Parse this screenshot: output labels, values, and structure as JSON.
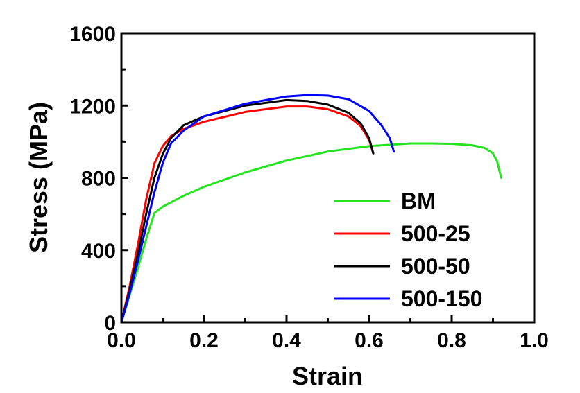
{
  "chart_data": {
    "type": "line",
    "xlabel": "Strain",
    "ylabel": "Stress (MPa)",
    "xlim": [
      0.0,
      1.0
    ],
    "ylim": [
      0,
      1600
    ],
    "xticks": [
      0.0,
      0.2,
      0.4,
      0.6,
      0.8,
      1.0
    ],
    "xtick_labels": [
      "0.0",
      "0.2",
      "0.4",
      "0.6",
      "0.8",
      "1.0"
    ],
    "yticks": [
      0,
      400,
      800,
      1200,
      1600
    ],
    "ytick_labels": [
      "0",
      "400",
      "800",
      "1200",
      "1600"
    ],
    "grid": false,
    "legend_position": "bottom-right",
    "series": [
      {
        "name": "BM",
        "color": "#22e51e",
        "x": [
          0.0,
          0.02,
          0.04,
          0.06,
          0.08,
          0.1,
          0.15,
          0.2,
          0.3,
          0.4,
          0.5,
          0.6,
          0.7,
          0.75,
          0.8,
          0.85,
          0.88,
          0.9,
          0.91,
          0.92
        ],
        "y": [
          0,
          150,
          300,
          460,
          605,
          640,
          700,
          750,
          830,
          895,
          945,
          975,
          990,
          990,
          988,
          980,
          965,
          935,
          890,
          800
        ]
      },
      {
        "name": "500-25",
        "color": "#ff0000",
        "x": [
          0.0,
          0.02,
          0.04,
          0.06,
          0.08,
          0.1,
          0.12,
          0.15,
          0.2,
          0.3,
          0.4,
          0.45,
          0.5,
          0.55,
          0.58,
          0.6,
          0.61
        ],
        "y": [
          0,
          200,
          430,
          680,
          880,
          975,
          1030,
          1070,
          1110,
          1165,
          1195,
          1195,
          1180,
          1140,
          1085,
          1010,
          935
        ]
      },
      {
        "name": "500-50",
        "color": "#000000",
        "x": [
          0.0,
          0.02,
          0.04,
          0.06,
          0.08,
          0.1,
          0.12,
          0.15,
          0.2,
          0.3,
          0.4,
          0.45,
          0.5,
          0.55,
          0.58,
          0.6,
          0.61
        ],
        "y": [
          0,
          180,
          380,
          600,
          800,
          930,
          1020,
          1090,
          1140,
          1200,
          1230,
          1225,
          1205,
          1160,
          1100,
          1020,
          935
        ]
      },
      {
        "name": "500-150",
        "color": "#0000ff",
        "x": [
          0.0,
          0.02,
          0.04,
          0.06,
          0.08,
          0.1,
          0.12,
          0.15,
          0.2,
          0.3,
          0.4,
          0.45,
          0.5,
          0.55,
          0.6,
          0.63,
          0.65,
          0.66
        ],
        "y": [
          0,
          160,
          340,
          530,
          720,
          880,
          990,
          1060,
          1140,
          1210,
          1250,
          1258,
          1255,
          1235,
          1170,
          1090,
          1020,
          945
        ]
      }
    ]
  }
}
